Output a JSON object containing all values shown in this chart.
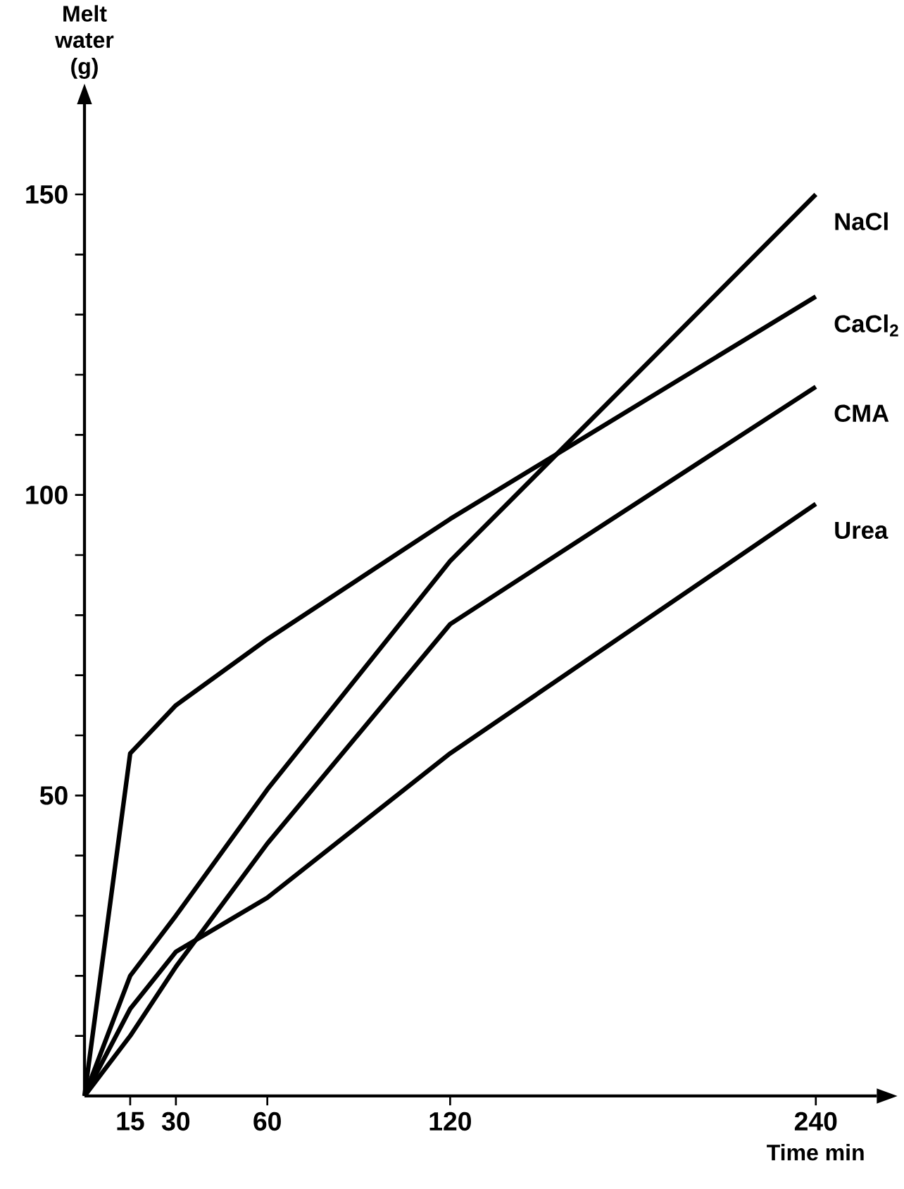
{
  "chart_data": {
    "type": "line",
    "xlabel": "Time min",
    "ylabel": "Melt water (g)",
    "x": [
      0,
      15,
      30,
      60,
      120,
      240
    ],
    "series": [
      {
        "name": "NaCl",
        "color": "#000000",
        "values": [
          0,
          20,
          30,
          51,
          89,
          150
        ]
      },
      {
        "name": "CaCl$_{2}$",
        "color": "#000000",
        "values": [
          0,
          57,
          65,
          76,
          96,
          133
        ]
      },
      {
        "name": "CMA",
        "color": "#000000",
        "values": [
          0,
          10,
          21.5,
          42,
          78.5,
          118
        ]
      },
      {
        "name": "Urea",
        "color": "#000000",
        "values": [
          0,
          14.5,
          24,
          33,
          57,
          98.5
        ]
      }
    ],
    "xlim": [
      0,
      260
    ],
    "ylim": [
      0,
      165
    ],
    "xticks": [
      15,
      30,
      60,
      120,
      240
    ],
    "yticks": [
      {
        "value": 10,
        "label": null
      },
      {
        "value": 20,
        "label": null
      },
      {
        "value": 30,
        "label": null
      },
      {
        "value": 40,
        "label": null
      },
      50,
      {
        "value": 60,
        "label": null
      },
      {
        "value": 70,
        "label": null
      },
      {
        "value": 80,
        "label": null
      },
      {
        "value": 90,
        "label": null
      },
      100,
      {
        "value": 110,
        "label": null
      },
      {
        "value": 120,
        "label": null
      },
      {
        "value": 130,
        "label": null
      },
      {
        "value": 140,
        "label": null
      },
      150
    ],
    "grid": false,
    "legend": false
  }
}
